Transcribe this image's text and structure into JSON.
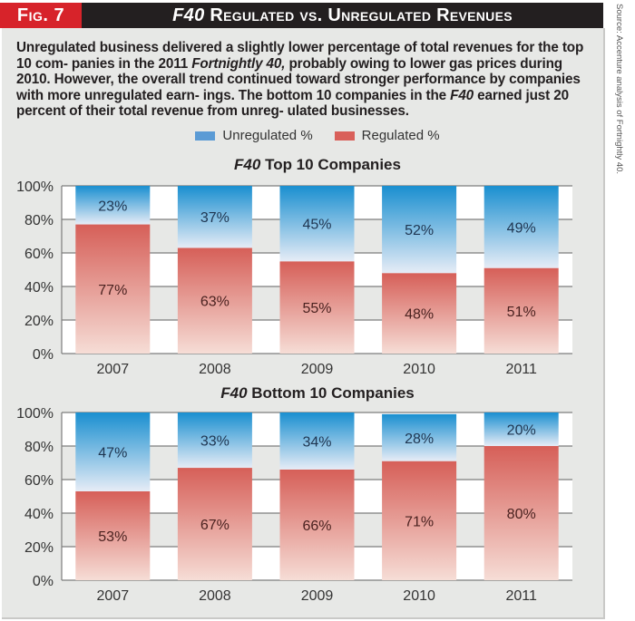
{
  "header": {
    "fig_label": "Fig. 7",
    "title_italic": "F40",
    "title_rest": " Regulated vs. Unregulated Revenues"
  },
  "source_note": "Source: Accenture analysis of Fortnightly 40.",
  "description": {
    "parts": [
      {
        "text": "Unregulated business delivered a slightly lower percentage of total revenues for the top 10 com- panies in the 2011 ",
        "italic": false
      },
      {
        "text": "Fortnightly 40,",
        "italic": true
      },
      {
        "text": " probably owing to lower gas prices during 2010. However, the overall trend continued toward stronger performance by companies with more unregulated earn- ings. The bottom 10 companies in the ",
        "italic": false
      },
      {
        "text": "F40",
        "italic": true
      },
      {
        "text": " earned just 20 percent of their total revenue from unreg- ulated businesses.",
        "italic": false
      }
    ]
  },
  "legend": [
    {
      "label": "Unregulated %",
      "color": "#5b9bd5"
    },
    {
      "label": "Regulated %",
      "color": "#d9605a"
    }
  ],
  "colors": {
    "unregulated_top": "#1a8fd0",
    "unregulated_bottom": "#e6ecf6",
    "regulated_top": "#d65f58",
    "regulated_bottom": "#f6ddd6",
    "header_bg": "#231f20",
    "fig_label_bg": "#d7232a",
    "panel_bg": "#e7e8e6"
  },
  "chart_data": [
    {
      "type": "bar",
      "stacked": true,
      "title_italic": "F40",
      "title_rest": " Top 10 Companies",
      "categories": [
        "2007",
        "2008",
        "2009",
        "2010",
        "2011"
      ],
      "series": [
        {
          "name": "Regulated %",
          "values": [
            77,
            63,
            55,
            48,
            51
          ]
        },
        {
          "name": "Unregulated %",
          "values": [
            23,
            37,
            45,
            52,
            49
          ]
        }
      ],
      "data_labels": {
        "Regulated %": [
          "77%",
          "63%",
          "55%",
          "48%",
          "51%"
        ],
        "Unregulated %": [
          "23%",
          "37%",
          "45%",
          "52%",
          "49%"
        ]
      },
      "yticks": [
        "0%",
        "20%",
        "40%",
        "60%",
        "80%",
        "100%"
      ],
      "ylim": [
        0,
        100
      ],
      "xlabel": "",
      "ylabel": "",
      "grid": true,
      "legend": "top-center"
    },
    {
      "type": "bar",
      "stacked": true,
      "title_italic": "F40",
      "title_rest": " Bottom 10 Companies",
      "categories": [
        "2007",
        "2008",
        "2009",
        "2010",
        "2011"
      ],
      "series": [
        {
          "name": "Regulated %",
          "values": [
            53,
            67,
            66,
            71,
            80
          ]
        },
        {
          "name": "Unregulated %",
          "values": [
            47,
            33,
            34,
            28,
            20
          ]
        }
      ],
      "data_labels": {
        "Regulated %": [
          "53%",
          "67%",
          "66%",
          "71%",
          "80%"
        ],
        "Unregulated %": [
          "47%",
          "33%",
          "34%",
          "28%",
          "20%"
        ]
      },
      "yticks": [
        "0%",
        "20%",
        "40%",
        "60%",
        "80%",
        "100%"
      ],
      "ylim": [
        0,
        100
      ],
      "xlabel": "",
      "ylabel": "",
      "grid": true,
      "legend": "top-center"
    }
  ]
}
